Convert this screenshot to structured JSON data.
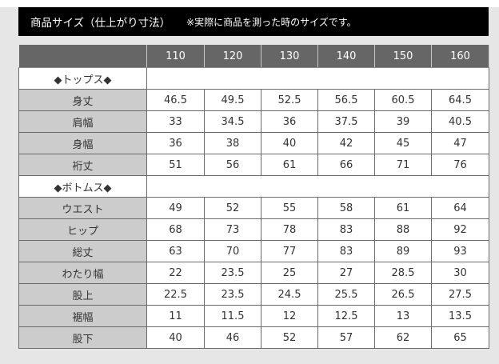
{
  "title": {
    "main": "商品サイズ（仕上がり寸法）",
    "note": "※実際に商品を測った時のサイズです。"
  },
  "table": {
    "columns": [
      "110",
      "120",
      "130",
      "140",
      "150",
      "160"
    ],
    "sections": [
      {
        "label": "◆トップス◆",
        "rows": [
          {
            "label": "身丈",
            "values": [
              "46.5",
              "49.5",
              "52.5",
              "56.5",
              "60.5",
              "64.5"
            ]
          },
          {
            "label": "肩幅",
            "values": [
              "33",
              "34.5",
              "36",
              "37.5",
              "39",
              "40.5"
            ]
          },
          {
            "label": "身幅",
            "values": [
              "36",
              "38",
              "40",
              "42",
              "45",
              "47"
            ]
          },
          {
            "label": "裄丈",
            "values": [
              "51",
              "56",
              "61",
              "66",
              "71",
              "76"
            ]
          }
        ]
      },
      {
        "label": "◆ボトムス◆",
        "rows": [
          {
            "label": "ウエスト",
            "values": [
              "49",
              "52",
              "55",
              "58",
              "61",
              "64"
            ]
          },
          {
            "label": "ヒップ",
            "values": [
              "68",
              "73",
              "78",
              "83",
              "88",
              "92"
            ]
          },
          {
            "label": "総丈",
            "values": [
              "63",
              "70",
              "77",
              "83",
              "89",
              "93"
            ]
          },
          {
            "label": "わたり幅",
            "values": [
              "22",
              "23.5",
              "25",
              "27",
              "28.5",
              "30"
            ]
          },
          {
            "label": "股上",
            "values": [
              "22.5",
              "23.5",
              "24.5",
              "25.5",
              "26.5",
              "27.5"
            ]
          },
          {
            "label": "裾幅",
            "values": [
              "11",
              "11.5",
              "12",
              "12.5",
              "13",
              "13.5"
            ]
          },
          {
            "label": "股下",
            "values": [
              "40",
              "46",
              "52",
              "57",
              "62",
              "65"
            ]
          }
        ]
      }
    ]
  },
  "colors": {
    "title_bg": "#000000",
    "header_bg": "#666666",
    "label_bg": "#cccccc",
    "page_bg": "#e6e6e6"
  }
}
